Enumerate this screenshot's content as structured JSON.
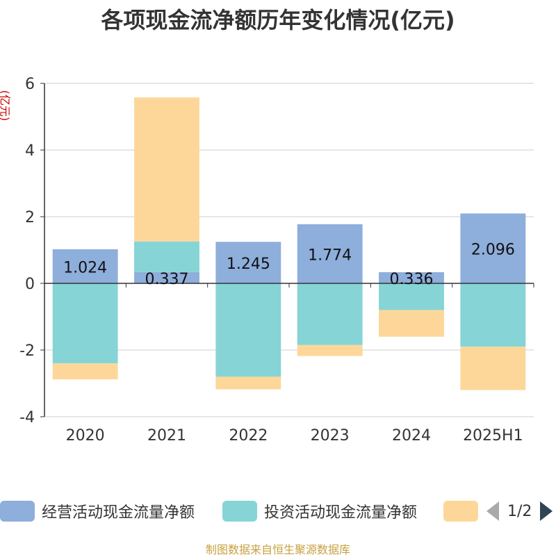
{
  "title": "各项现金流净额历年变化情况(亿元)",
  "y_unit_label": "(亿元)",
  "source": "制图数据来自恒生聚源数据库",
  "legend": {
    "items": [
      {
        "label": "经营活动现金流量净额",
        "color": "#8eaedb"
      },
      {
        "label": "投资活动现金流量净额",
        "color": "#86d4d6"
      },
      {
        "label": "",
        "color": "#fdd79a"
      }
    ],
    "page": "1/2"
  },
  "chart_data": {
    "type": "bar",
    "stacked": true,
    "categories": [
      "2020",
      "2021",
      "2022",
      "2023",
      "2024",
      "2025H1"
    ],
    "ylim": [
      -4,
      6
    ],
    "yticks": [
      -4,
      -2,
      0,
      2,
      4,
      6
    ],
    "grid": true,
    "legend_position": "bottom",
    "series": [
      {
        "name": "经营活动现金流量净额",
        "color": "#8eaedb",
        "values": [
          1.024,
          0.337,
          1.245,
          1.774,
          0.336,
          2.096
        ],
        "labels": [
          "1.024",
          "0.337",
          "1.245",
          "1.774",
          "0.336",
          "2.096"
        ]
      },
      {
        "name": "投资活动现金流量净额",
        "color": "#86d4d6",
        "values": [
          -2.4,
          0.92,
          -2.8,
          -1.85,
          -0.8,
          -1.9
        ]
      },
      {
        "color": "#fdd79a",
        "values": [
          -0.48,
          4.32,
          -0.38,
          -0.33,
          -0.8,
          -1.3
        ]
      }
    ]
  }
}
